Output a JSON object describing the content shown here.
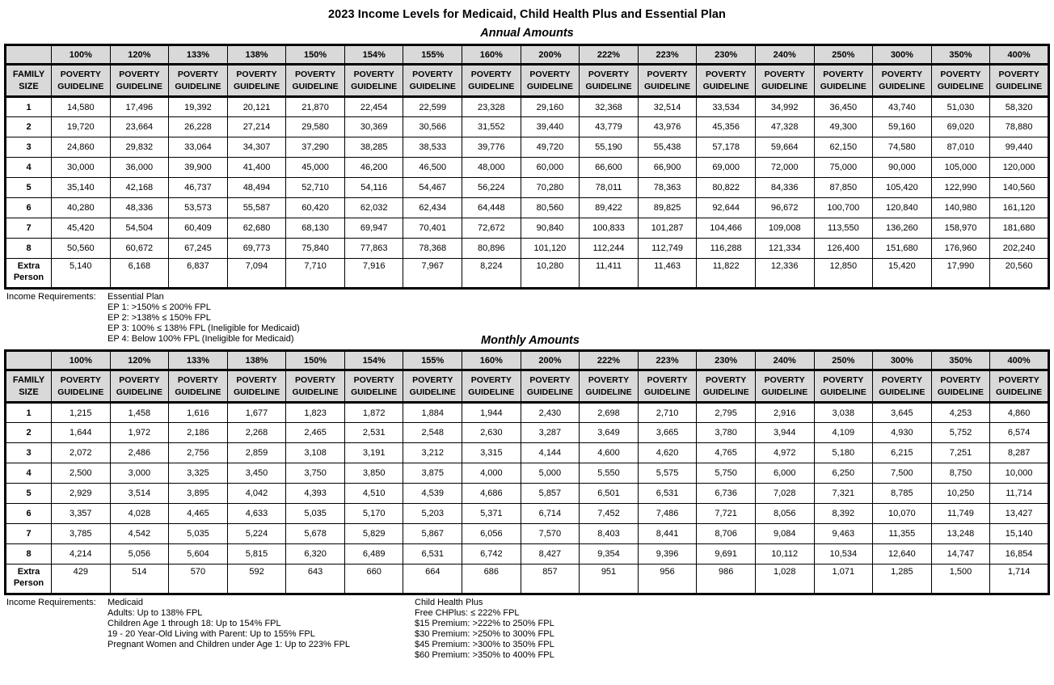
{
  "title": "2023 Income Levels for Medicaid, Child Health Plus and Essential Plan",
  "colors": {
    "header_bg": "#d9d9d9",
    "border": "#000000"
  },
  "annual": {
    "subtitle": "Annual Amounts",
    "family_header": "FAMILY SIZE",
    "sub_header": "POVERTY GUIDELINE",
    "percent_headers": [
      "100%",
      "120%",
      "133%",
      "138%",
      "150%",
      "154%",
      "155%",
      "160%",
      "200%",
      "222%",
      "223%",
      "230%",
      "240%",
      "250%",
      "300%",
      "350%",
      "400%"
    ],
    "rows": [
      {
        "size": "1",
        "values": [
          "14,580",
          "17,496",
          "19,392",
          "20,121",
          "21,870",
          "22,454",
          "22,599",
          "23,328",
          "29,160",
          "32,368",
          "32,514",
          "33,534",
          "34,992",
          "36,450",
          "43,740",
          "51,030",
          "58,320"
        ]
      },
      {
        "size": "2",
        "values": [
          "19,720",
          "23,664",
          "26,228",
          "27,214",
          "29,580",
          "30,369",
          "30,566",
          "31,552",
          "39,440",
          "43,779",
          "43,976",
          "45,356",
          "47,328",
          "49,300",
          "59,160",
          "69,020",
          "78,880"
        ]
      },
      {
        "size": "3",
        "values": [
          "24,860",
          "29,832",
          "33,064",
          "34,307",
          "37,290",
          "38,285",
          "38,533",
          "39,776",
          "49,720",
          "55,190",
          "55,438",
          "57,178",
          "59,664",
          "62,150",
          "74,580",
          "87,010",
          "99,440"
        ]
      },
      {
        "size": "4",
        "values": [
          "30,000",
          "36,000",
          "39,900",
          "41,400",
          "45,000",
          "46,200",
          "46,500",
          "48,000",
          "60,000",
          "66,600",
          "66,900",
          "69,000",
          "72,000",
          "75,000",
          "90,000",
          "105,000",
          "120,000"
        ]
      },
      {
        "size": "5",
        "values": [
          "35,140",
          "42,168",
          "46,737",
          "48,494",
          "52,710",
          "54,116",
          "54,467",
          "56,224",
          "70,280",
          "78,011",
          "78,363",
          "80,822",
          "84,336",
          "87,850",
          "105,420",
          "122,990",
          "140,560"
        ]
      },
      {
        "size": "6",
        "values": [
          "40,280",
          "48,336",
          "53,573",
          "55,587",
          "60,420",
          "62,032",
          "62,434",
          "64,448",
          "80,560",
          "89,422",
          "89,825",
          "92,644",
          "96,672",
          "100,700",
          "120,840",
          "140,980",
          "161,120"
        ]
      },
      {
        "size": "7",
        "values": [
          "45,420",
          "54,504",
          "60,409",
          "62,680",
          "68,130",
          "69,947",
          "70,401",
          "72,672",
          "90,840",
          "100,833",
          "101,287",
          "104,466",
          "109,008",
          "113,550",
          "136,260",
          "158,970",
          "181,680"
        ]
      },
      {
        "size": "8",
        "values": [
          "50,560",
          "60,672",
          "67,245",
          "69,773",
          "75,840",
          "77,863",
          "78,368",
          "80,896",
          "101,120",
          "112,244",
          "112,749",
          "116,288",
          "121,334",
          "126,400",
          "151,680",
          "176,960",
          "202,240"
        ]
      }
    ],
    "extra_row": {
      "label": "Extra Person",
      "values": [
        "5,140",
        "6,168",
        "6,837",
        "7,094",
        "7,710",
        "7,916",
        "7,967",
        "8,224",
        "10,280",
        "11,411",
        "11,463",
        "11,822",
        "12,336",
        "12,850",
        "15,420",
        "17,990",
        "20,560"
      ]
    }
  },
  "annual_notes": {
    "label": "Income Requirements:",
    "lines": [
      "Essential Plan",
      "EP 1: >150% ≤ 200% FPL",
      "EP 2: >138% ≤ 150% FPL",
      "EP 3: 100% ≤ 138% FPL (Ineligible for Medicaid)",
      "EP 4: Below 100% FPL (Ineligible for Medicaid)"
    ]
  },
  "monthly": {
    "subtitle": "Monthly Amounts",
    "family_header": "FAMILY SIZE",
    "sub_header": "POVERTY GUIDELINE",
    "percent_headers": [
      "100%",
      "120%",
      "133%",
      "138%",
      "150%",
      "154%",
      "155%",
      "160%",
      "200%",
      "222%",
      "223%",
      "230%",
      "240%",
      "250%",
      "300%",
      "350%",
      "400%"
    ],
    "rows": [
      {
        "size": "1",
        "values": [
          "1,215",
          "1,458",
          "1,616",
          "1,677",
          "1,823",
          "1,872",
          "1,884",
          "1,944",
          "2,430",
          "2,698",
          "2,710",
          "2,795",
          "2,916",
          "3,038",
          "3,645",
          "4,253",
          "4,860"
        ]
      },
      {
        "size": "2",
        "values": [
          "1,644",
          "1,972",
          "2,186",
          "2,268",
          "2,465",
          "2,531",
          "2,548",
          "2,630",
          "3,287",
          "3,649",
          "3,665",
          "3,780",
          "3,944",
          "4,109",
          "4,930",
          "5,752",
          "6,574"
        ]
      },
      {
        "size": "3",
        "values": [
          "2,072",
          "2,486",
          "2,756",
          "2,859",
          "3,108",
          "3,191",
          "3,212",
          "3,315",
          "4,144",
          "4,600",
          "4,620",
          "4,765",
          "4,972",
          "5,180",
          "6,215",
          "7,251",
          "8,287"
        ]
      },
      {
        "size": "4",
        "values": [
          "2,500",
          "3,000",
          "3,325",
          "3,450",
          "3,750",
          "3,850",
          "3,875",
          "4,000",
          "5,000",
          "5,550",
          "5,575",
          "5,750",
          "6,000",
          "6,250",
          "7,500",
          "8,750",
          "10,000"
        ]
      },
      {
        "size": "5",
        "values": [
          "2,929",
          "3,514",
          "3,895",
          "4,042",
          "4,393",
          "4,510",
          "4,539",
          "4,686",
          "5,857",
          "6,501",
          "6,531",
          "6,736",
          "7,028",
          "7,321",
          "8,785",
          "10,250",
          "11,714"
        ]
      },
      {
        "size": "6",
        "values": [
          "3,357",
          "4,028",
          "4,465",
          "4,633",
          "5,035",
          "5,170",
          "5,203",
          "5,371",
          "6,714",
          "7,452",
          "7,486",
          "7,721",
          "8,056",
          "8,392",
          "10,070",
          "11,749",
          "13,427"
        ]
      },
      {
        "size": "7",
        "values": [
          "3,785",
          "4,542",
          "5,035",
          "5,224",
          "5,678",
          "5,829",
          "5,867",
          "6,056",
          "7,570",
          "8,403",
          "8,441",
          "8,706",
          "9,084",
          "9,463",
          "11,355",
          "13,248",
          "15,140"
        ]
      },
      {
        "size": "8",
        "values": [
          "4,214",
          "5,056",
          "5,604",
          "5,815",
          "6,320",
          "6,489",
          "6,531",
          "6,742",
          "8,427",
          "9,354",
          "9,396",
          "9,691",
          "10,112",
          "10,534",
          "12,640",
          "14,747",
          "16,854"
        ]
      }
    ],
    "extra_row": {
      "label": "Extra Person",
      "values": [
        "429",
        "514",
        "570",
        "592",
        "643",
        "660",
        "664",
        "686",
        "857",
        "951",
        "956",
        "986",
        "1,028",
        "1,071",
        "1,285",
        "1,500",
        "1,714"
      ]
    }
  },
  "monthly_notes": {
    "label": "Income Requirements:",
    "medicaid_lines": [
      "Medicaid",
      "Adults: Up to 138% FPL",
      "Children Age 1 through 18: Up to 154% FPL",
      "19 - 20 Year-Old Living with Parent: Up to 155% FPL",
      "Pregnant Women and Children under Age 1: Up to 223% FPL"
    ],
    "chp_lines": [
      "Child Health Plus",
      "Free CHPlus: ≤ 222% FPL",
      "$15 Premium: >222% to 250% FPL",
      "$30 Premium: >250% to 300% FPL",
      "$45 Premium: >300% to 350% FPL",
      "$60 Premium: >350% to 400% FPL"
    ]
  }
}
